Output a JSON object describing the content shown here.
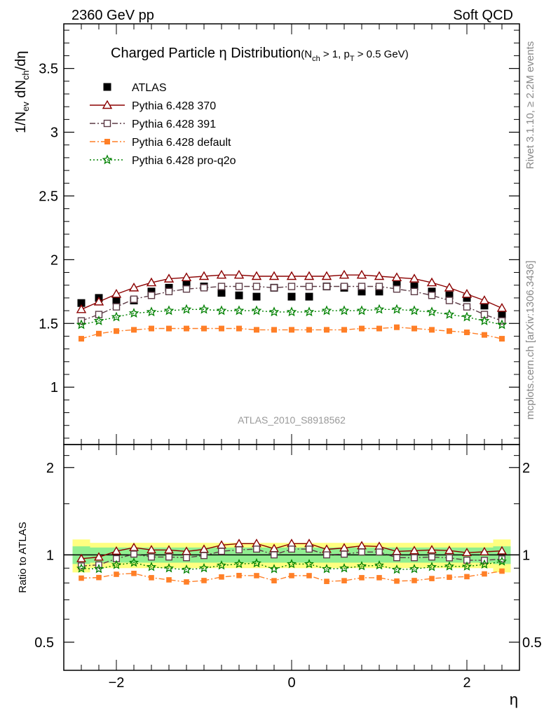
{
  "header": {
    "left": "2360 GeV pp",
    "right": "Soft QCD"
  },
  "side_labels": {
    "top": "Rivet 3.1.10, ≥ 2.2M events",
    "bottom": "mcplots.cern.ch [arXiv:1306.3436]"
  },
  "main_plot": {
    "title": "Charged Particle η Distribution",
    "title_sub": "(N",
    "title_sub2": "ch",
    "title_sub3": " > 1, p",
    "title_sub4": "T",
    "title_sub5": " > 0.5 GeV)",
    "ylabel": "1/N",
    "ylabel_sub1": "ev",
    "ylabel_mid": " dN",
    "ylabel_sub2": "ch",
    "ylabel_end": "/dη",
    "watermark": "ATLAS_2010_S8918562",
    "yticks": [
      "1",
      "1.5",
      "2",
      "2.5",
      "3",
      "3.5"
    ]
  },
  "ratio_plot": {
    "ylabel": "Ratio to ATLAS",
    "yticks": [
      "0.5",
      "1",
      "2"
    ],
    "xlabel": "η",
    "xticks": [
      "−2",
      "0",
      "2"
    ]
  },
  "legend": [
    "ATLAS",
    "Pythia 6.428 370",
    "Pythia 6.428 391",
    "Pythia 6.428 default",
    "Pythia 6.428 pro-q2o"
  ],
  "colors": {
    "atlas": "#000000",
    "p370": "#8b0000",
    "p391": "#5c3a45",
    "pdefault": "#ff7f27",
    "pq2o": "#008000",
    "band_outer": "#ffff80",
    "band_inner": "#90ee90"
  },
  "chart_data": {
    "type": "scatter",
    "xlabel": "η",
    "ylabel": "1/N_ev dN_ch/dη",
    "xlim": [
      -2.6,
      2.6
    ],
    "ylim": [
      0.55,
      3.85
    ],
    "ratio_ylim": [
      0.4,
      2.4
    ],
    "ratio_scale": "log",
    "x": [
      -2.4,
      -2.2,
      -2.0,
      -1.8,
      -1.6,
      -1.4,
      -1.2,
      -1.0,
      -0.8,
      -0.6,
      -0.4,
      -0.2,
      0.0,
      0.2,
      0.4,
      0.6,
      0.8,
      1.0,
      1.2,
      1.4,
      1.6,
      1.8,
      2.0,
      2.2,
      2.4
    ],
    "series": [
      {
        "name": "ATLAS",
        "marker": "square-filled",
        "values": [
          1.66,
          1.7,
          1.68,
          1.68,
          1.75,
          1.78,
          1.81,
          1.79,
          1.74,
          1.72,
          1.71,
          1.78,
          1.71,
          1.71,
          1.79,
          1.78,
          1.75,
          1.75,
          1.81,
          1.79,
          1.75,
          1.72,
          1.7,
          1.64,
          1.57
        ]
      },
      {
        "name": "Pythia 6.428 370",
        "marker": "triangle-open",
        "line": "solid",
        "values": [
          1.61,
          1.67,
          1.73,
          1.78,
          1.82,
          1.85,
          1.86,
          1.87,
          1.88,
          1.88,
          1.87,
          1.87,
          1.87,
          1.87,
          1.87,
          1.88,
          1.88,
          1.87,
          1.86,
          1.85,
          1.82,
          1.78,
          1.73,
          1.68,
          1.62
        ]
      },
      {
        "name": "Pythia 6.428 391",
        "marker": "square-open",
        "line": "dashdot",
        "values": [
          1.52,
          1.57,
          1.63,
          1.69,
          1.72,
          1.75,
          1.77,
          1.78,
          1.79,
          1.79,
          1.79,
          1.78,
          1.79,
          1.79,
          1.79,
          1.79,
          1.79,
          1.79,
          1.77,
          1.75,
          1.72,
          1.68,
          1.63,
          1.57,
          1.52
        ]
      },
      {
        "name": "Pythia 6.428 default",
        "marker": "square-filled",
        "line": "dashdot",
        "values": [
          1.38,
          1.42,
          1.44,
          1.45,
          1.46,
          1.46,
          1.46,
          1.46,
          1.46,
          1.46,
          1.45,
          1.45,
          1.45,
          1.45,
          1.45,
          1.45,
          1.46,
          1.46,
          1.47,
          1.46,
          1.45,
          1.44,
          1.43,
          1.41,
          1.38
        ]
      },
      {
        "name": "Pythia 6.428 pro-q2o",
        "marker": "star",
        "line": "dotted",
        "values": [
          1.49,
          1.52,
          1.55,
          1.58,
          1.59,
          1.6,
          1.61,
          1.61,
          1.6,
          1.6,
          1.6,
          1.59,
          1.59,
          1.59,
          1.6,
          1.6,
          1.6,
          1.61,
          1.61,
          1.6,
          1.59,
          1.57,
          1.55,
          1.52,
          1.49
        ]
      }
    ],
    "ratio_band": {
      "outer": [
        0.13,
        0.1,
        0.1,
        0.1,
        0.1,
        0.1,
        0.1,
        0.1,
        0.1,
        0.1,
        0.1,
        0.1,
        0.1,
        0.1,
        0.1,
        0.1,
        0.1,
        0.1,
        0.1,
        0.1,
        0.1,
        0.1,
        0.1,
        0.1,
        0.13
      ],
      "inner": [
        0.07,
        0.06,
        0.06,
        0.06,
        0.06,
        0.06,
        0.06,
        0.06,
        0.06,
        0.06,
        0.06,
        0.06,
        0.06,
        0.06,
        0.06,
        0.06,
        0.06,
        0.06,
        0.06,
        0.06,
        0.06,
        0.06,
        0.06,
        0.06,
        0.07
      ]
    },
    "grid": false,
    "legend_position": "top-left"
  }
}
